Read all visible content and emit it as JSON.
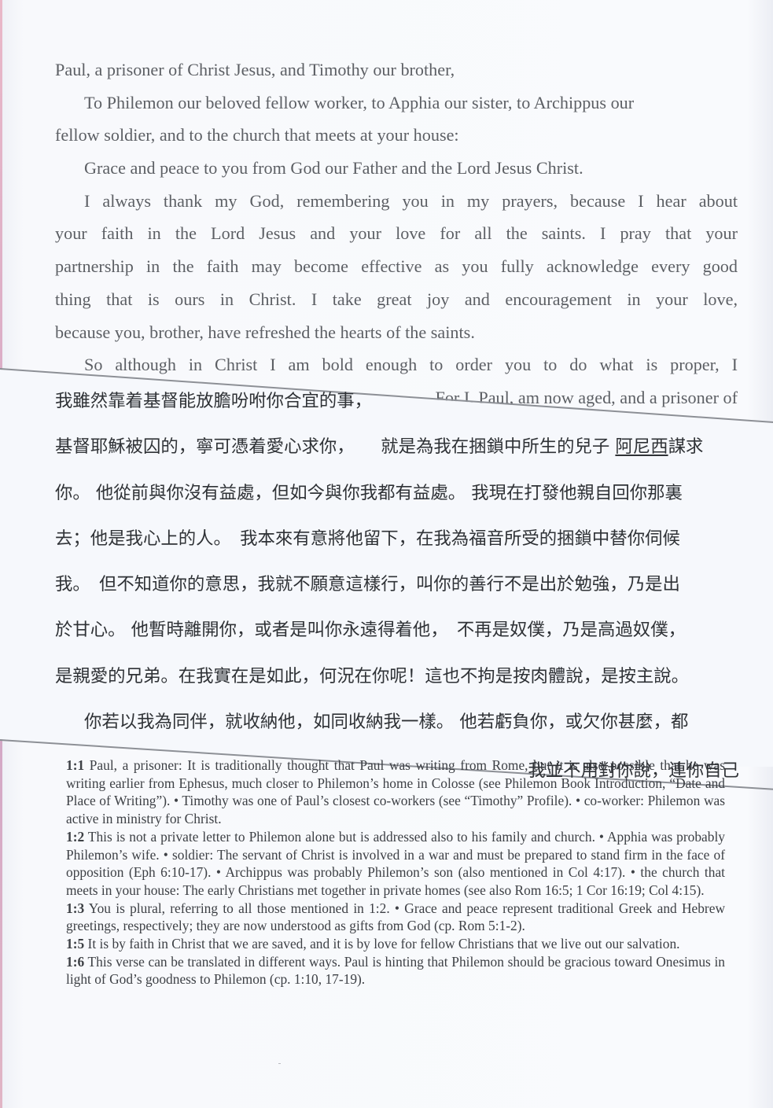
{
  "english_lines": [
    "Paul, a prisoner of Christ Jesus, and Timothy our brother,",
    "To Philemon our beloved fellow worker, to Apphia our sister, to Archippus our",
    "fellow soldier, and to the church that meets at your house:",
    "Grace and peace to you from God our Father and the Lord Jesus Christ.",
    "I always thank my God, remembering you in my prayers, because I hear about",
    "your faith in the Lord Jesus and your love for all the saints. I pray that your",
    "partnership in the faith may become effective as you fully acknowledge every good",
    "thing that is ours in Christ. I take great joy and encouragement in your love,",
    "because you, brother, have refreshed the hearts of the saints.",
    "So although in Christ I am bold enough to order you to do what is proper, I"
  ],
  "english_fragment": "For I, Paul, am now aged, and a prisoner of",
  "chinese": {
    "line1": "我雖然靠着基督能放膽吩咐你合宜的事，",
    "line2_pre": "基督耶穌被囚的，寧可憑着愛心求你，　　就是為我在捆鎖中所生的兒子 ",
    "line2_name": "阿尼西",
    "line2_post": "謀求",
    "line3": "你。 他從前與你沒有益處，但如今與你我都有益處。 我現在打發他親自回你那裏",
    "line4": "去；他是我心上的人。　我本來有意將他留下，在我為福音所受的捆鎖中替你伺候",
    "line5": "我。　但不知道你的意思，我就不願意這樣行，叫你的善行不是出於勉強，乃是出",
    "line6": "於甘心。 他暫時離開你，或者是叫你永遠得着他，　不再是奴僕，乃是高過奴僕，",
    "line7": "是親愛的兄弟。在我實在是如此，何況在你呢！這也不拘是按肉體說，是按主說。",
    "line8": "你若以我為同伴，就收納他，如同收納我一樣。 他若虧負你，或欠你甚麼，都",
    "line9": "我並不用對你說，連你自己"
  },
  "notes": [
    {
      "ref": "1:1",
      "text": "Paul, a prisoner: It is traditionally thought that Paul was writing from Rome, but it is also possible that he was writing earlier from Ephesus, much closer to Philemon’s home in Colosse (see Philemon Book Introduction, “Date and Place of Writing”). • Timothy was one of Paul’s closest co-workers (see “Timothy” Profile). • co-worker: Philemon was active in ministry for Christ."
    },
    {
      "ref": "1:2",
      "text": "This is not a private letter to Philemon alone but is addressed also to his family and church. • Apphia was probably Philemon’s wife. • soldier: The servant of Christ is involved in a war and must be prepared to stand firm in the face of opposition (Eph 6:10-17). • Archippus was probably Philemon’s son (also mentioned in Col 4:17). • the church that meets in your house: The early Christians met together in private homes (see also Rom 16:5; 1 Cor 16:19; Col 4:15)."
    },
    {
      "ref": "1:3",
      "text": "You is plural, referring to all those mentioned in 1:2. • Grace and peace represent traditional Greek and Hebrew greetings, respectively; they are now understood as gifts from God (cp. Rom 5:1-2)."
    },
    {
      "ref": "1:5",
      "text": "It is by faith in Christ that we are saved, and it is by love for fellow Christians that we live out our salvation."
    },
    {
      "ref": "1:6",
      "text": "This verse can be translated in different ways. Paul is hinting that Philemon should be gracious toward Onesimus in light of God’s goodness to Philemon (cp. 1:10, 17-19)."
    }
  ]
}
